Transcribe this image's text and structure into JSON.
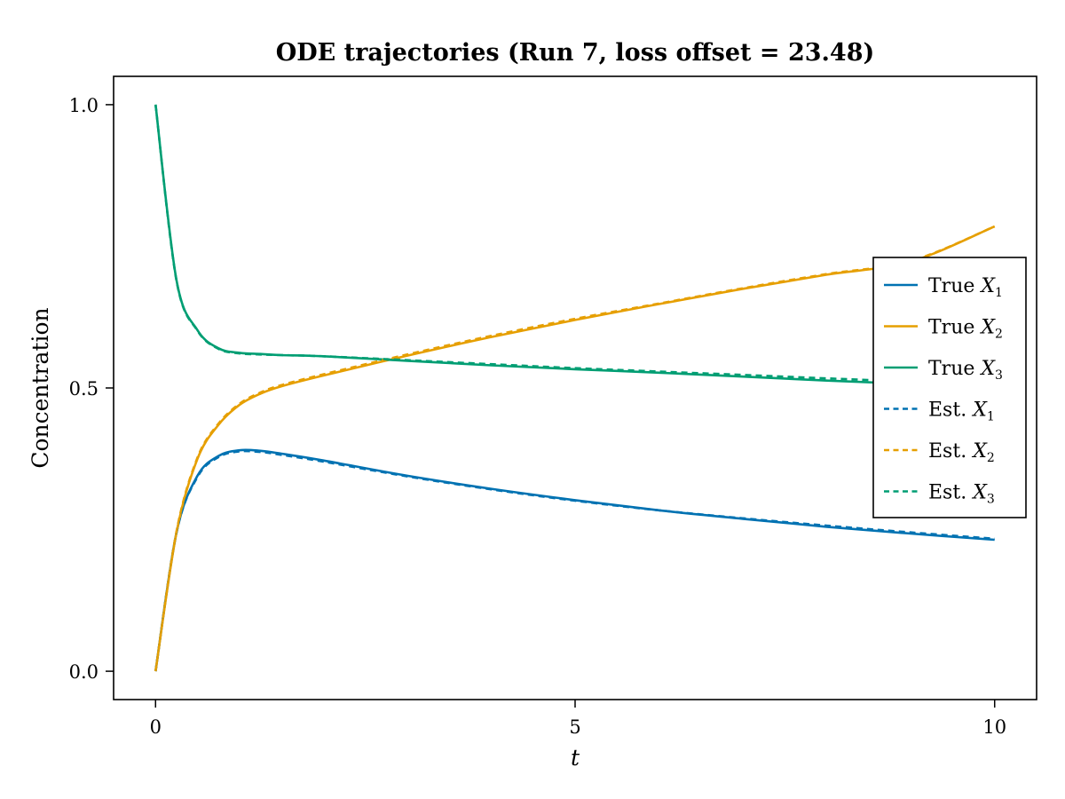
{
  "chart_data": {
    "type": "line",
    "title": "ODE trajectories (Run 7, loss offset = 23.48)",
    "xlabel": "t",
    "ylabel": "Concentration",
    "xlim": [
      -0.5,
      10.5
    ],
    "ylim": [
      -0.05,
      1.05
    ],
    "xticks": [
      0,
      5,
      10
    ],
    "xtick_labels": [
      "0",
      "5",
      "10"
    ],
    "yticks": [
      0.0,
      0.5,
      1.0
    ],
    "ytick_labels": [
      "0.0",
      "0.5",
      "1.0"
    ],
    "grid": false,
    "legend_position": "right",
    "x": [
      0,
      0.25,
      0.5,
      0.75,
      1,
      1.25,
      1.5,
      2,
      3,
      4,
      5,
      6,
      7,
      8,
      9,
      10
    ],
    "series": [
      {
        "name": "True X1",
        "legend_main": "True ",
        "legend_var": "X",
        "legend_sub": "1",
        "color": "#0072B2",
        "dash": false,
        "values": [
          0.0,
          0.245,
          0.345,
          0.38,
          0.39,
          0.389,
          0.384,
          0.372,
          0.345,
          0.322,
          0.302,
          0.284,
          0.269,
          0.255,
          0.243,
          0.232
        ]
      },
      {
        "name": "True X2",
        "legend_main": "True ",
        "legend_var": "X",
        "legend_sub": "2",
        "color": "#E69F00",
        "dash": false,
        "values": [
          0.0,
          0.245,
          0.375,
          0.435,
          0.47,
          0.49,
          0.503,
          0.522,
          0.557,
          0.59,
          0.62,
          0.648,
          0.675,
          0.7,
          0.723,
          0.785
        ]
      },
      {
        "name": "True X3",
        "legend_main": "True ",
        "legend_var": "X",
        "legend_sub": "3",
        "color": "#009E73",
        "dash": false,
        "values": [
          1.0,
          0.69,
          0.602,
          0.57,
          0.562,
          0.56,
          0.558,
          0.556,
          0.548,
          0.54,
          0.533,
          0.527,
          0.52,
          0.513,
          0.507,
          0.5
        ]
      },
      {
        "name": "Est. X1",
        "legend_main": "Est. ",
        "legend_var": "X",
        "legend_sub": "1",
        "color": "#0072B2",
        "dash": true,
        "values": [
          0.0,
          0.245,
          0.343,
          0.378,
          0.388,
          0.387,
          0.382,
          0.37,
          0.344,
          0.321,
          0.301,
          0.284,
          0.27,
          0.257,
          0.245,
          0.234
        ]
      },
      {
        "name": "Est. X2",
        "legend_main": "Est. ",
        "legend_var": "X",
        "legend_sub": "2",
        "color": "#E69F00",
        "dash": true,
        "values": [
          0.0,
          0.247,
          0.377,
          0.437,
          0.472,
          0.492,
          0.505,
          0.524,
          0.559,
          0.592,
          0.622,
          0.649,
          0.676,
          0.701,
          0.724,
          0.785
        ]
      },
      {
        "name": "Est. X3",
        "legend_main": "Est. ",
        "legend_var": "X",
        "legend_sub": "3",
        "color": "#009E73",
        "dash": true,
        "values": [
          1.0,
          0.689,
          0.601,
          0.569,
          0.561,
          0.559,
          0.558,
          0.556,
          0.549,
          0.542,
          0.535,
          0.529,
          0.523,
          0.517,
          0.511,
          0.505
        ]
      }
    ]
  }
}
